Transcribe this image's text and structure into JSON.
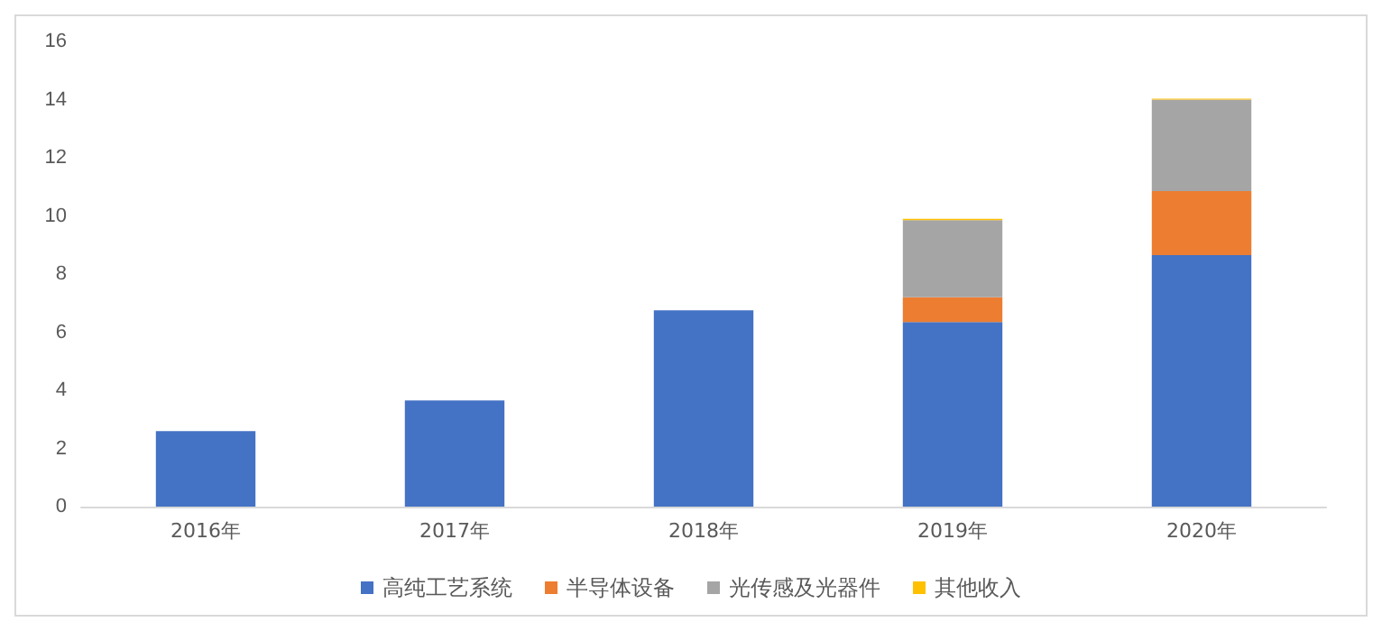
{
  "chart_data": {
    "type": "bar",
    "stacked": true,
    "categories": [
      "2016年",
      "2017年",
      "2018年",
      "2019年",
      "2020年"
    ],
    "series": [
      {
        "name": "高纯工艺系统",
        "color": "#4472c4",
        "values": [
          2.6,
          3.65,
          6.75,
          6.35,
          8.65
        ]
      },
      {
        "name": "半导体设备",
        "color": "#ed7d31",
        "values": [
          null,
          null,
          null,
          0.85,
          2.2
        ]
      },
      {
        "name": "光传感及光器件",
        "color": "#a5a5a5",
        "values": [
          null,
          null,
          null,
          2.65,
          3.15
        ]
      },
      {
        "name": "其他收入",
        "color": "#ffc000",
        "values": [
          null,
          null,
          null,
          0.05,
          0.03
        ]
      }
    ],
    "ylim": [
      0,
      16
    ],
    "yticks": [
      0,
      2,
      4,
      6,
      8,
      10,
      12,
      14,
      16
    ],
    "grid": false,
    "legend": "bottom"
  }
}
